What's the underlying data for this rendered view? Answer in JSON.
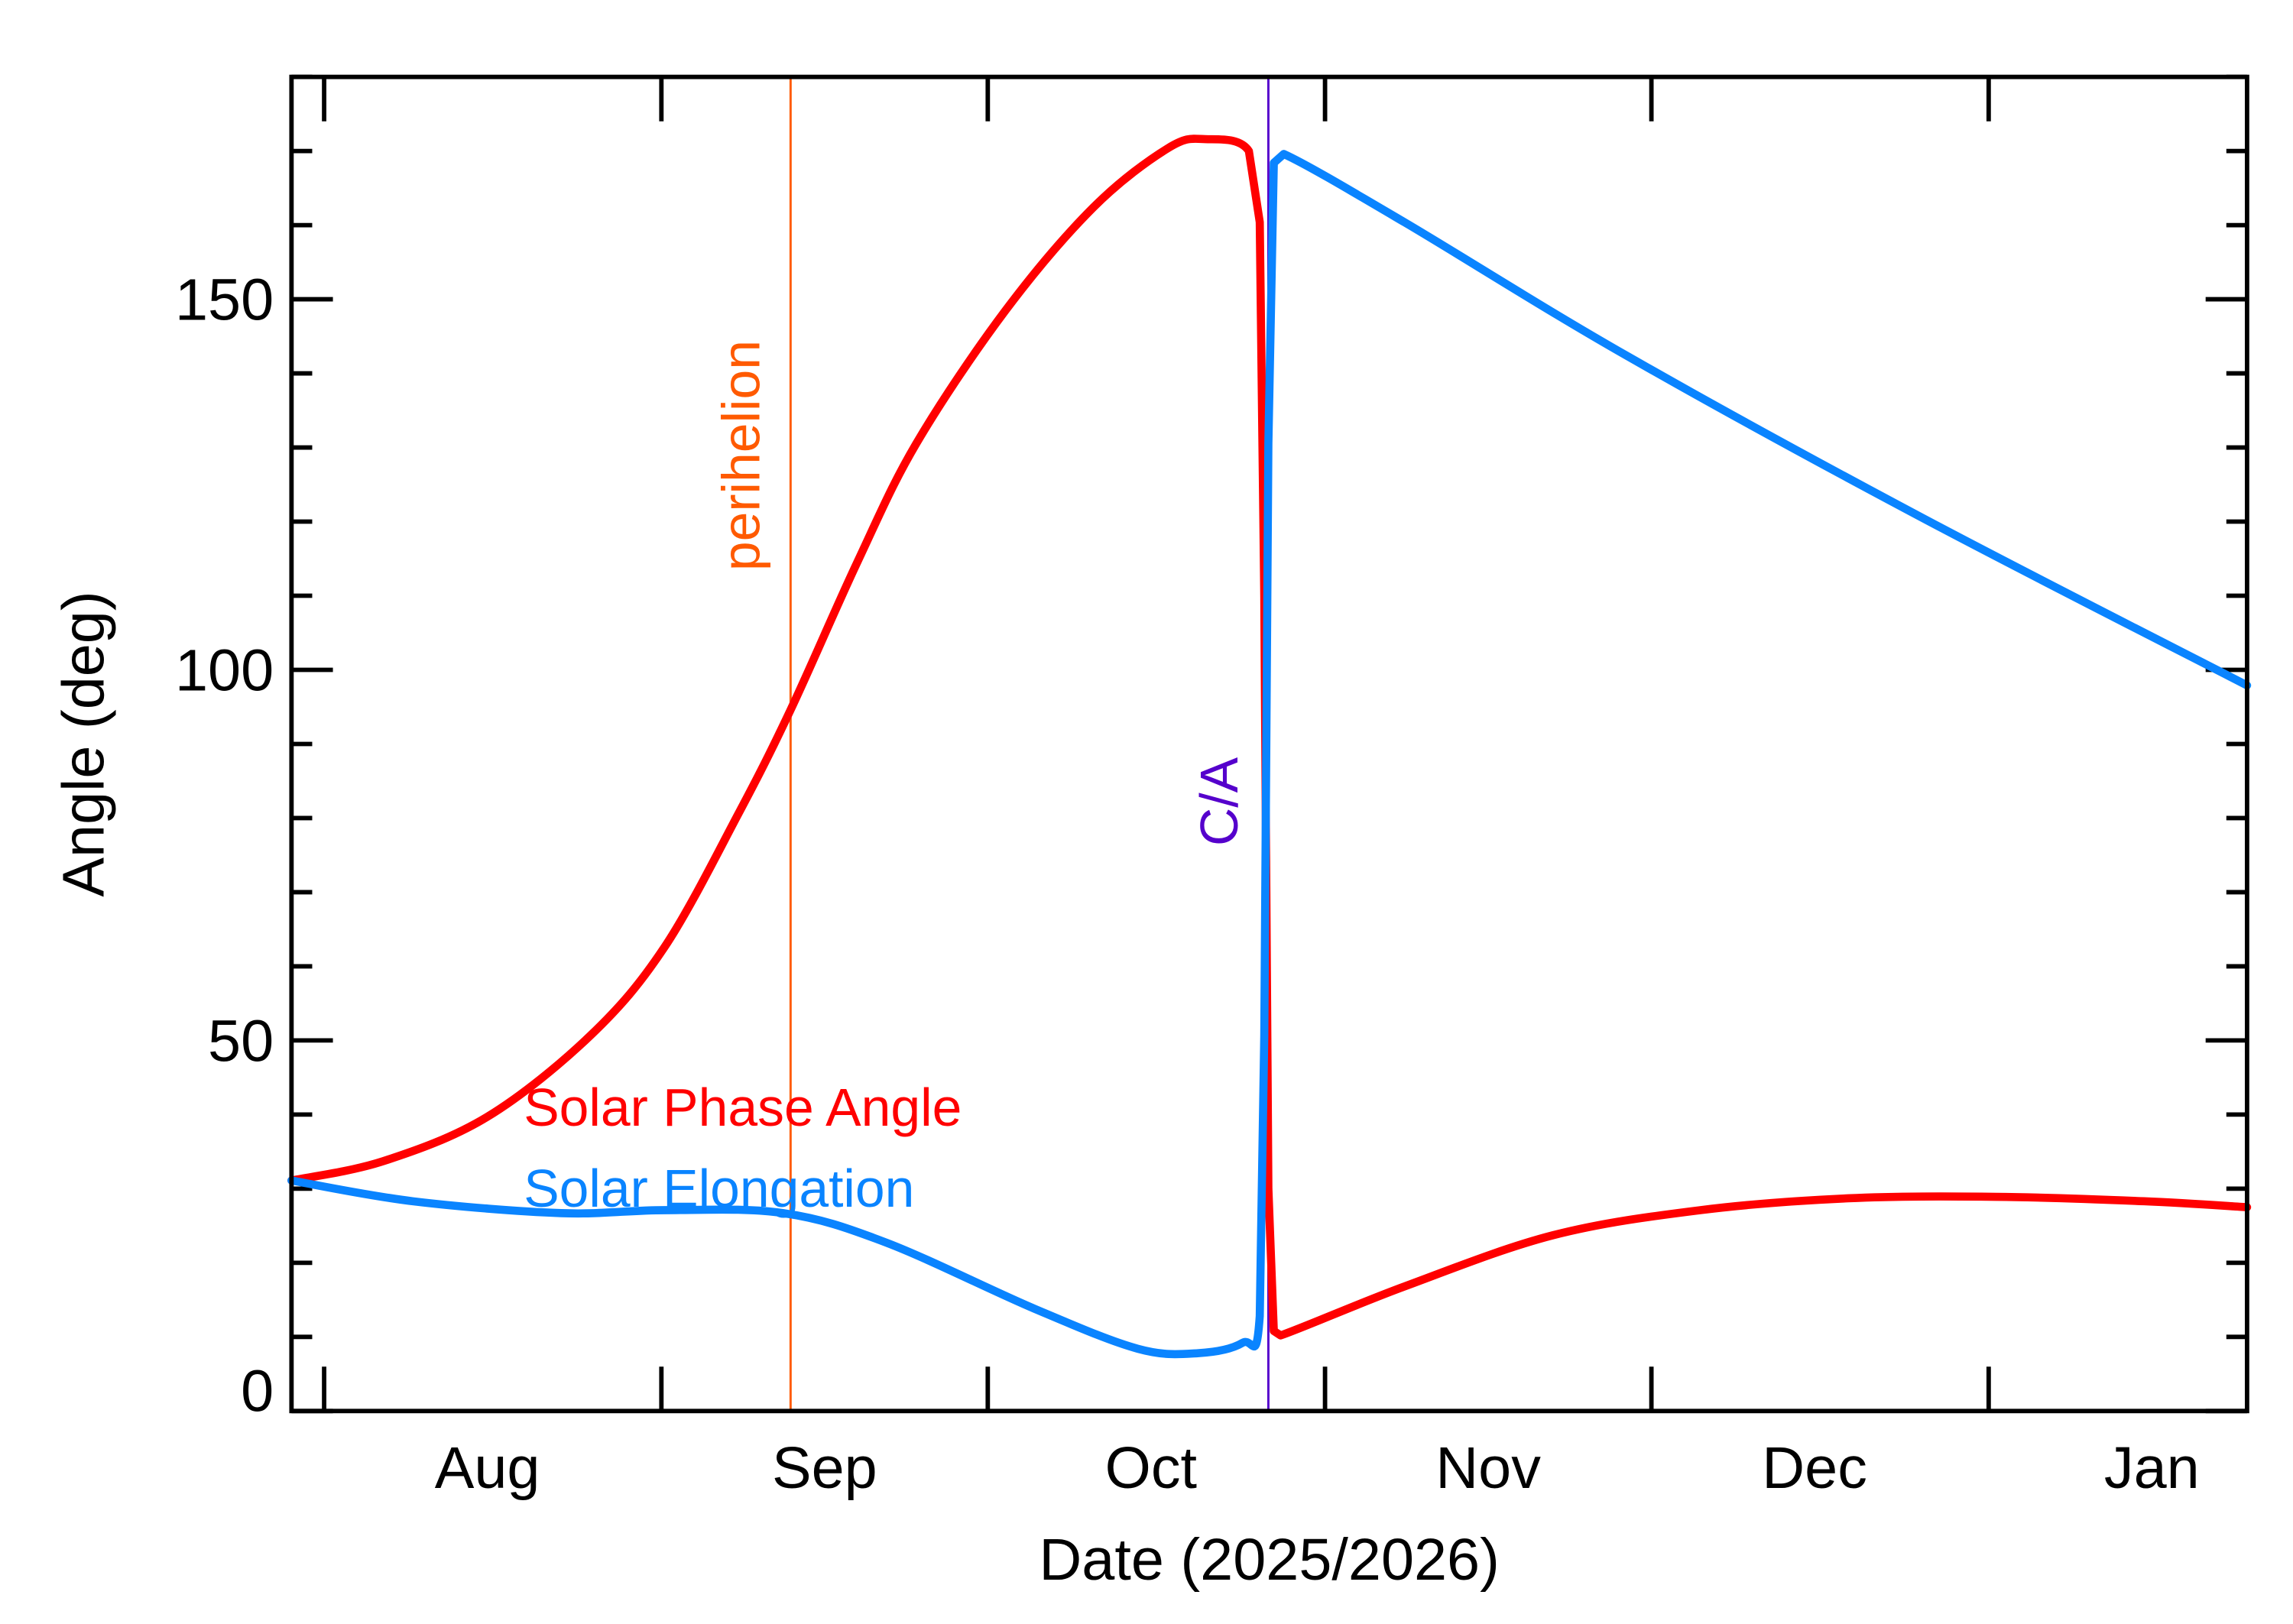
{
  "chart_data": {
    "type": "line",
    "xlabel": "Date (2025/2026)",
    "ylabel": "Angle (deg)",
    "xlim": [
      "2025-07-29T00:00",
      "2026-01-24T18:00"
    ],
    "ylim": [
      0,
      180
    ],
    "grid": false,
    "x_ticks": [
      {
        "date": "2025-08-01",
        "label": ""
      },
      {
        "date": "2025-09-01",
        "label": ""
      },
      {
        "date": "2025-10-01",
        "label": ""
      },
      {
        "date": "2025-11-01",
        "label": ""
      },
      {
        "date": "2025-12-01",
        "label": ""
      },
      {
        "date": "2026-01-01",
        "label": ""
      }
    ],
    "x_tick_labels": [
      {
        "date": "2025-08-16",
        "label": "Aug"
      },
      {
        "date": "2025-09-16",
        "label": "Sep"
      },
      {
        "date": "2025-10-16",
        "label": "Oct"
      },
      {
        "date": "2025-11-16",
        "label": "Nov"
      },
      {
        "date": "2025-12-16",
        "label": "Dec"
      },
      {
        "date": "2026-01-16",
        "label": "Jan"
      }
    ],
    "y_ticks_major": [
      0,
      50,
      100,
      150
    ],
    "y_tick_labels": [
      "0",
      "50",
      "100",
      "150"
    ],
    "y_ticks_minor_step": 10,
    "vertical_markers": [
      {
        "label": "perihelion",
        "date": "2025-09-12T21:00",
        "color": "#ff5a00"
      },
      {
        "label": "C/A",
        "date": "2025-10-26T19:00",
        "color": "#5500cc"
      }
    ],
    "series": [
      {
        "name": "Solar Phase Angle",
        "color": "#ff0000",
        "points": [
          [
            "2025-07-29T00:00",
            31.1
          ],
          [
            "2025-08-06T10:00",
            33.7
          ],
          [
            "2025-08-16T00:00",
            39.7
          ],
          [
            "2025-08-25T12:00",
            50.7
          ],
          [
            "2025-09-01T07:00",
            62.6
          ],
          [
            "2025-09-08T02:00",
            80.6
          ],
          [
            "2025-09-12T21:00",
            94.6
          ],
          [
            "2025-09-19T00:00",
            114.5
          ],
          [
            "2025-09-24T10:00",
            130.5
          ],
          [
            "2025-10-02T14:00",
            148.4
          ],
          [
            "2025-10-10T17:00",
            162.4
          ],
          [
            "2025-10-17T14:00",
            170.4
          ],
          [
            "2025-10-21T00:00",
            171.6
          ],
          [
            "2025-10-25T00:00",
            170.0
          ],
          [
            "2025-10-26T00:00",
            160.4
          ],
          [
            "2025-10-26T10:00",
            110.0
          ],
          [
            "2025-10-26T19:00",
            30.0
          ],
          [
            "2025-10-27T07:00",
            10.8
          ],
          [
            "2025-10-27T22:00",
            10.2
          ],
          [
            "2025-11-08T07:00",
            16.8
          ],
          [
            "2025-11-21T22:00",
            23.7
          ],
          [
            "2025-12-05T12:00",
            27.1
          ],
          [
            "2025-12-19T02:00",
            28.7
          ],
          [
            "2026-01-01T17:00",
            28.9
          ],
          [
            "2026-01-15T07:00",
            28.3
          ],
          [
            "2026-01-24T18:00",
            27.5
          ]
        ]
      },
      {
        "name": "Solar Elongation",
        "color": "#0a84ff",
        "points": [
          [
            "2025-07-29T00:00",
            31.1
          ],
          [
            "2025-08-09T04:00",
            28.3
          ],
          [
            "2025-08-22T19:00",
            26.7
          ],
          [
            "2025-09-01T07:00",
            27.1
          ],
          [
            "2025-09-12T05:00",
            26.7
          ],
          [
            "2025-09-21T17:00",
            22.7
          ],
          [
            "2025-10-05T07:00",
            13.8
          ],
          [
            "2025-10-14T19:00",
            8.4
          ],
          [
            "2025-10-20T07:00",
            7.8
          ],
          [
            "2025-10-24T10:00",
            9.2
          ],
          [
            "2025-10-26T00:00",
            12.8
          ],
          [
            "2025-10-26T10:00",
            50.7
          ],
          [
            "2025-10-26T19:00",
            130.5
          ],
          [
            "2025-10-27T07:00",
            168.4
          ],
          [
            "2025-10-28T05:00",
            169.6
          ],
          [
            "2025-11-08T07:00",
            160.4
          ],
          [
            "2025-11-28T17:00",
            142.4
          ],
          [
            "2025-12-25T22:00",
            120.5
          ],
          [
            "2026-01-24T18:00",
            97.9
          ]
        ]
      }
    ],
    "legend": {
      "placement": "inside-lower-left",
      "entries": [
        "Solar Phase Angle",
        "Solar Elongation"
      ]
    }
  }
}
